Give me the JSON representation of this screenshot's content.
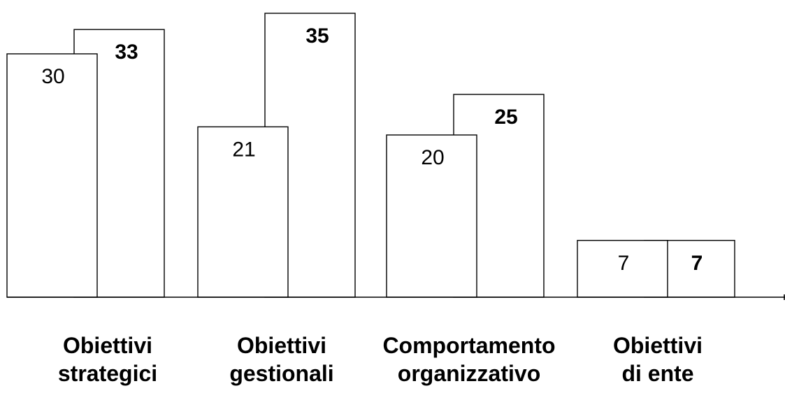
{
  "chart_data": {
    "type": "bar",
    "categories": [
      [
        "Obiettivi",
        "strategici"
      ],
      [
        "Obiettivi",
        "gestionali"
      ],
      [
        "Comportamento",
        "organizzativo"
      ],
      [
        "Obiettivi",
        "di ente"
      ]
    ],
    "series": [
      {
        "values": [
          30,
          21,
          20,
          7
        ],
        "bold_labels": false
      },
      {
        "values": [
          33,
          35,
          25,
          7
        ],
        "bold_labels": true
      }
    ],
    "ylim": [
      0,
      35
    ],
    "grid": false,
    "legend": false,
    "xlabel": "",
    "ylabel": "",
    "title": "",
    "colors": {
      "bar_fill": "#ffffff",
      "bar_stroke": "#000000",
      "text": "#000000"
    }
  }
}
